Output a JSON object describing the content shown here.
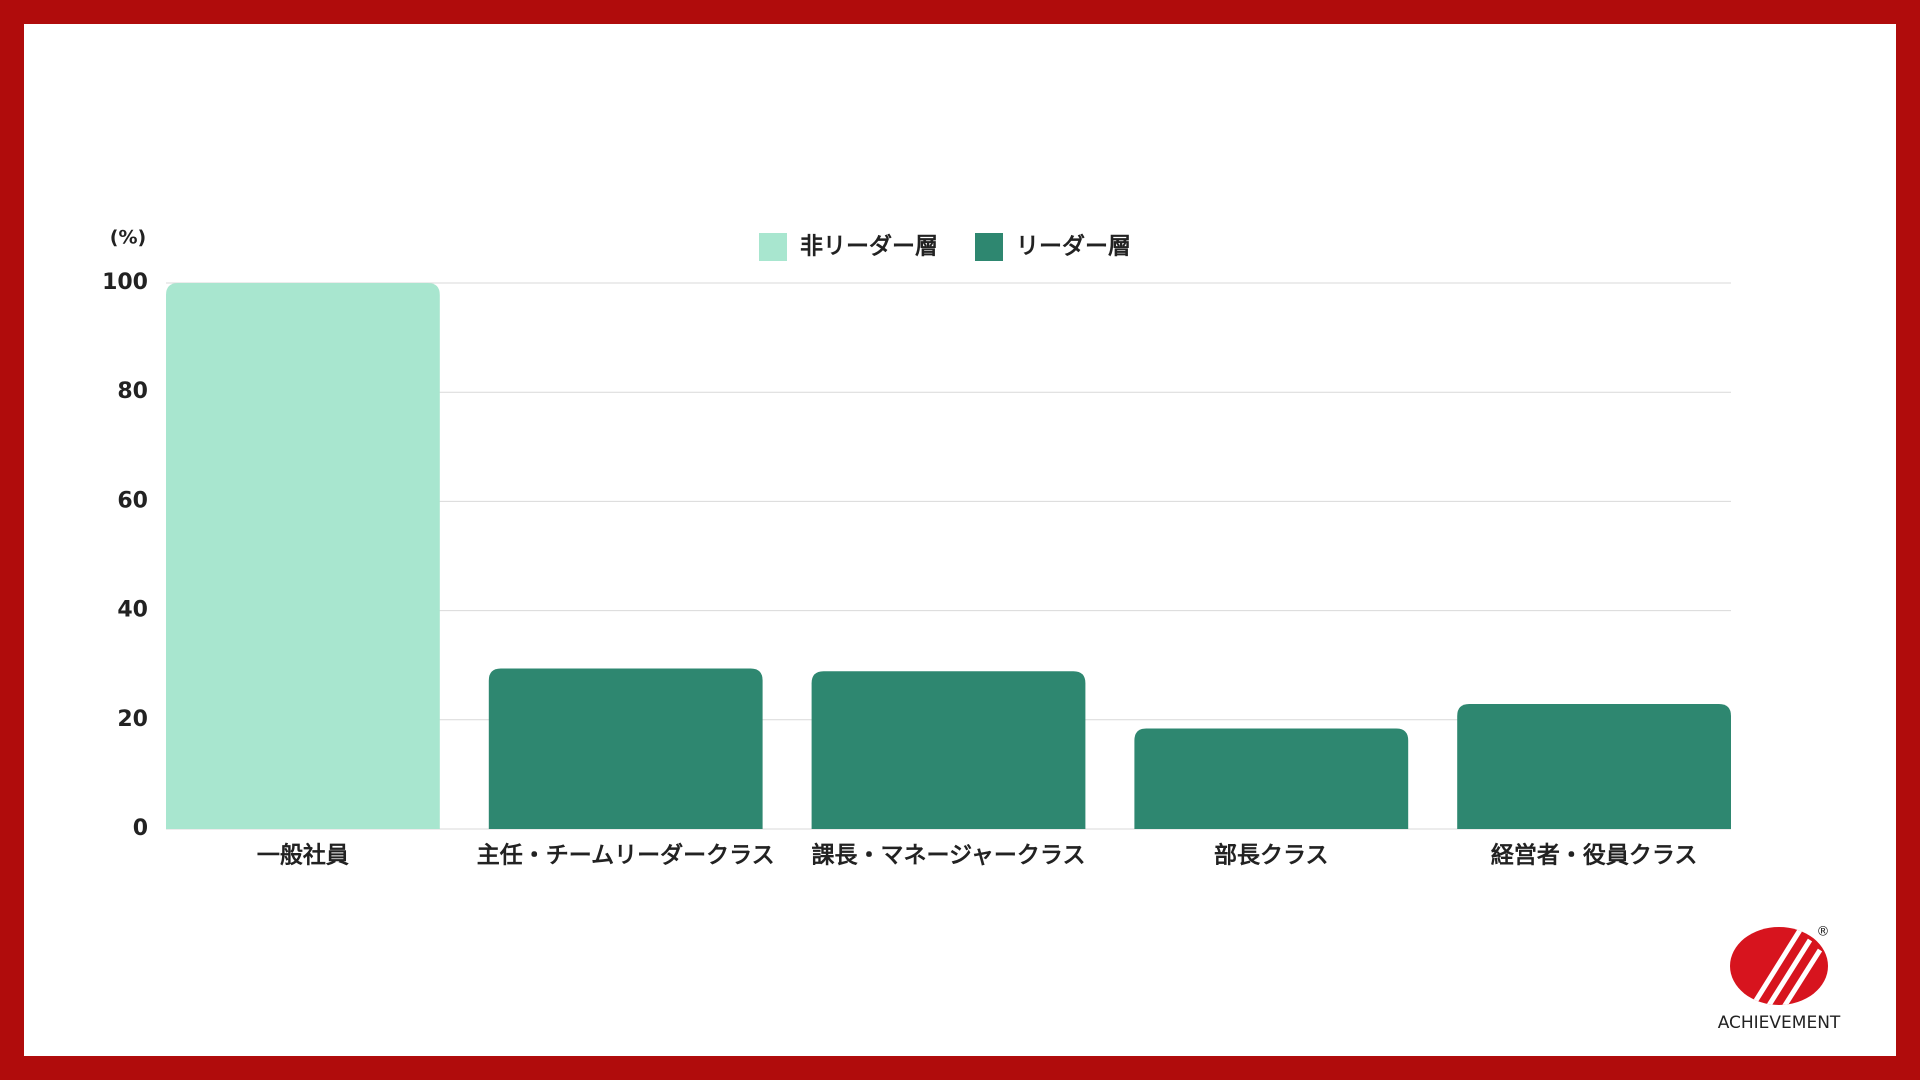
{
  "chart_data": {
    "type": "bar",
    "y_label": "(%)",
    "categories": [
      "一般社員",
      "主任・チームリーダークラス",
      "課長・マネージャークラス",
      "部長クラス",
      "経営者・役員クラス"
    ],
    "series": [
      {
        "name": "非リーダー層",
        "color": "#a8e6cf",
        "values": [
          100,
          null,
          null,
          null,
          null
        ]
      },
      {
        "name": "リーダー層",
        "color": "#2e8770",
        "values": [
          null,
          29.4,
          28.9,
          18.4,
          22.9
        ]
      }
    ],
    "ylim": [
      0,
      100
    ],
    "yticks": [
      0,
      20,
      40,
      60,
      80,
      100
    ],
    "grid": true,
    "legend": "top"
  },
  "logo": {
    "text": "ACHIEVEMENT",
    "mark": "®"
  }
}
